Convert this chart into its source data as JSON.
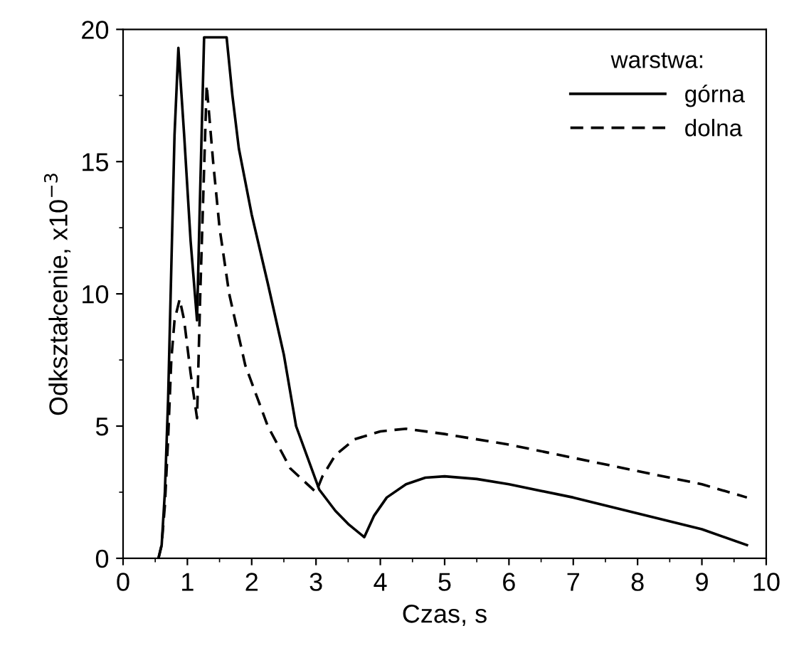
{
  "chart_data": {
    "type": "line",
    "xlabel": "Czas, s",
    "ylabel": "Odkształcenie, x10$^{−3}$",
    "legend_title": "warstwa:",
    "legend": "top right",
    "grid": false,
    "xlim": [
      0,
      10
    ],
    "ylim": [
      0,
      20
    ],
    "xticks": [
      0,
      1,
      2,
      3,
      4,
      5,
      6,
      7,
      8,
      9,
      10
    ],
    "yticks": [
      0,
      5,
      10,
      15,
      20
    ],
    "series": [
      {
        "name": "górna",
        "color": "#000000",
        "line_style": "solid",
        "x": [
          0.55,
          0.6,
          0.65,
          0.7,
          0.75,
          0.8,
          0.86,
          0.95,
          1.05,
          1.15,
          1.2,
          1.26,
          1.61,
          1.7,
          1.8,
          2.0,
          2.25,
          2.5,
          2.69,
          3.05,
          3.3,
          3.5,
          3.75,
          3.9,
          4.1,
          4.4,
          4.7,
          5.0,
          5.5,
          6.0,
          7.0,
          8.0,
          9.0,
          9.7
        ],
        "values": [
          0,
          0.5,
          2.5,
          6,
          11,
          16,
          19.3,
          16,
          12,
          9,
          14,
          19.7,
          19.7,
          17.5,
          15.5,
          13,
          10.4,
          7.7,
          5,
          2.6,
          1.8,
          1.3,
          0.8,
          1.6,
          2.3,
          2.8,
          3.05,
          3.1,
          3.0,
          2.8,
          2.3,
          1.7,
          1.1,
          0.5
        ]
      },
      {
        "name": "dolna",
        "color": "#000000",
        "line_style": "dashed",
        "x": [
          0.55,
          0.6,
          0.65,
          0.7,
          0.75,
          0.8,
          0.88,
          0.95,
          1.05,
          1.15,
          1.2,
          1.3,
          1.4,
          1.5,
          1.65,
          1.9,
          2.25,
          2.6,
          3.0,
          3.1,
          3.3,
          3.6,
          4.0,
          4.4,
          5.0,
          6.0,
          7.0,
          8.0,
          9.0,
          9.7
        ],
        "values": [
          0,
          0.5,
          2,
          4.5,
          7.5,
          9,
          9.8,
          9,
          7,
          5.3,
          10,
          17.9,
          15,
          12.5,
          10,
          7.3,
          5,
          3.4,
          2.5,
          3.1,
          3.9,
          4.5,
          4.8,
          4.9,
          4.7,
          4.3,
          3.8,
          3.3,
          2.8,
          2.3
        ]
      }
    ]
  }
}
